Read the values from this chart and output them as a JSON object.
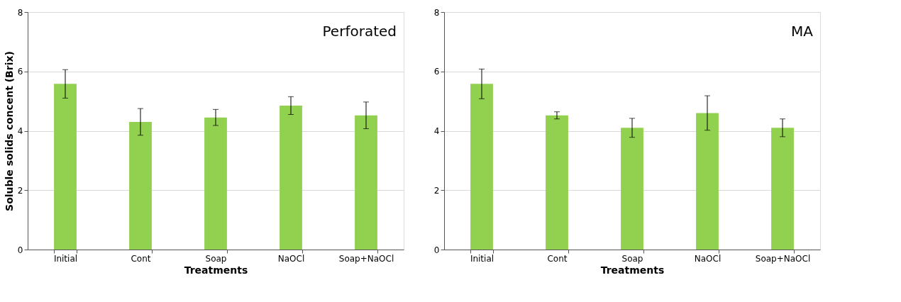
{
  "chart_data": [
    {
      "type": "bar",
      "xlabel": "Treatments",
      "ylabel": "Soluble solids concent (Brix)",
      "annotations": [
        "Perforated"
      ],
      "categories": [
        "Initial",
        "Cont",
        "Soap",
        "NaOCl",
        "Soap+NaOCl"
      ],
      "values": [
        5.58,
        4.3,
        4.45,
        4.85,
        4.52
      ],
      "errors": [
        0.48,
        0.45,
        0.27,
        0.3,
        0.45
      ],
      "color": "#92d050",
      "ylim": [
        0,
        8
      ],
      "yticks": [
        0,
        2,
        4,
        6,
        8
      ],
      "grid": "y"
    },
    {
      "type": "bar",
      "xlabel": "Treatments",
      "annotations": [
        "MA"
      ],
      "categories": [
        "Initial",
        "Cont",
        "Soap",
        "NaOCl",
        "Soap+NaOCl"
      ],
      "values": [
        5.58,
        4.52,
        4.1,
        4.6,
        4.1
      ],
      "errors": [
        0.5,
        0.12,
        0.32,
        0.58,
        0.3
      ],
      "color": "#92d050",
      "ylim": [
        0,
        8
      ],
      "yticks": [
        0,
        2,
        4,
        6,
        8
      ],
      "grid": "y"
    }
  ]
}
